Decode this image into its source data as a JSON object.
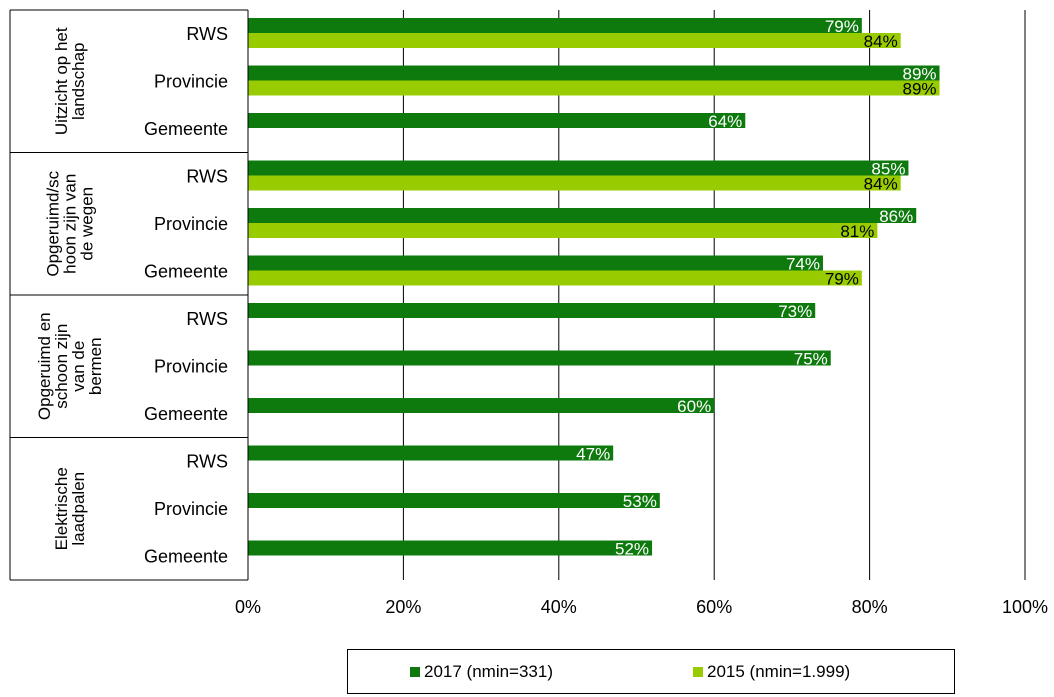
{
  "chart_data": {
    "type": "bar",
    "orientation": "horizontal",
    "groups": [
      {
        "label": "Uitzicht op het landschap",
        "lines": [
          "Uitzicht op het",
          "landschap"
        ],
        "categories": [
          "RWS",
          "Provincie",
          "Gemeente"
        ]
      },
      {
        "label": "Opgeruimd/schoon zijn van de wegen",
        "lines": [
          "Opgeruimd/sc",
          "hoon zijn van",
          "de wegen"
        ],
        "categories": [
          "RWS",
          "Provincie",
          "Gemeente"
        ]
      },
      {
        "label": "Opgeruimd en schoon zijn van de bermen",
        "lines": [
          "Opgeruimd en",
          "schoon zijn",
          "van de",
          "bermen"
        ],
        "categories": [
          "RWS",
          "Provincie",
          "Gemeente"
        ]
      },
      {
        "label": "Elektrische laadpalen",
        "lines": [
          "Elektrische",
          "laadpalen"
        ],
        "categories": [
          "RWS",
          "Provincie",
          "Gemeente"
        ]
      }
    ],
    "series": [
      {
        "name": "2017 (nmin=331)",
        "color": "#0e7a0e",
        "label_color": "#ffffff",
        "values": [
          [
            79,
            89,
            64
          ],
          [
            85,
            86,
            74
          ],
          [
            73,
            75,
            60
          ],
          [
            47,
            53,
            52
          ]
        ]
      },
      {
        "name": "2015 (nmin=1.999)",
        "color": "#99cc00",
        "label_color": "#000000",
        "values": [
          [
            84,
            89,
            null
          ],
          [
            84,
            81,
            79
          ],
          [
            null,
            null,
            null
          ],
          [
            null,
            null,
            null
          ]
        ]
      }
    ],
    "xlim": [
      0,
      100
    ],
    "xticks": [
      "0%",
      "20%",
      "40%",
      "60%",
      "80%",
      "100%"
    ],
    "grid": true,
    "legend_position": "bottom"
  }
}
